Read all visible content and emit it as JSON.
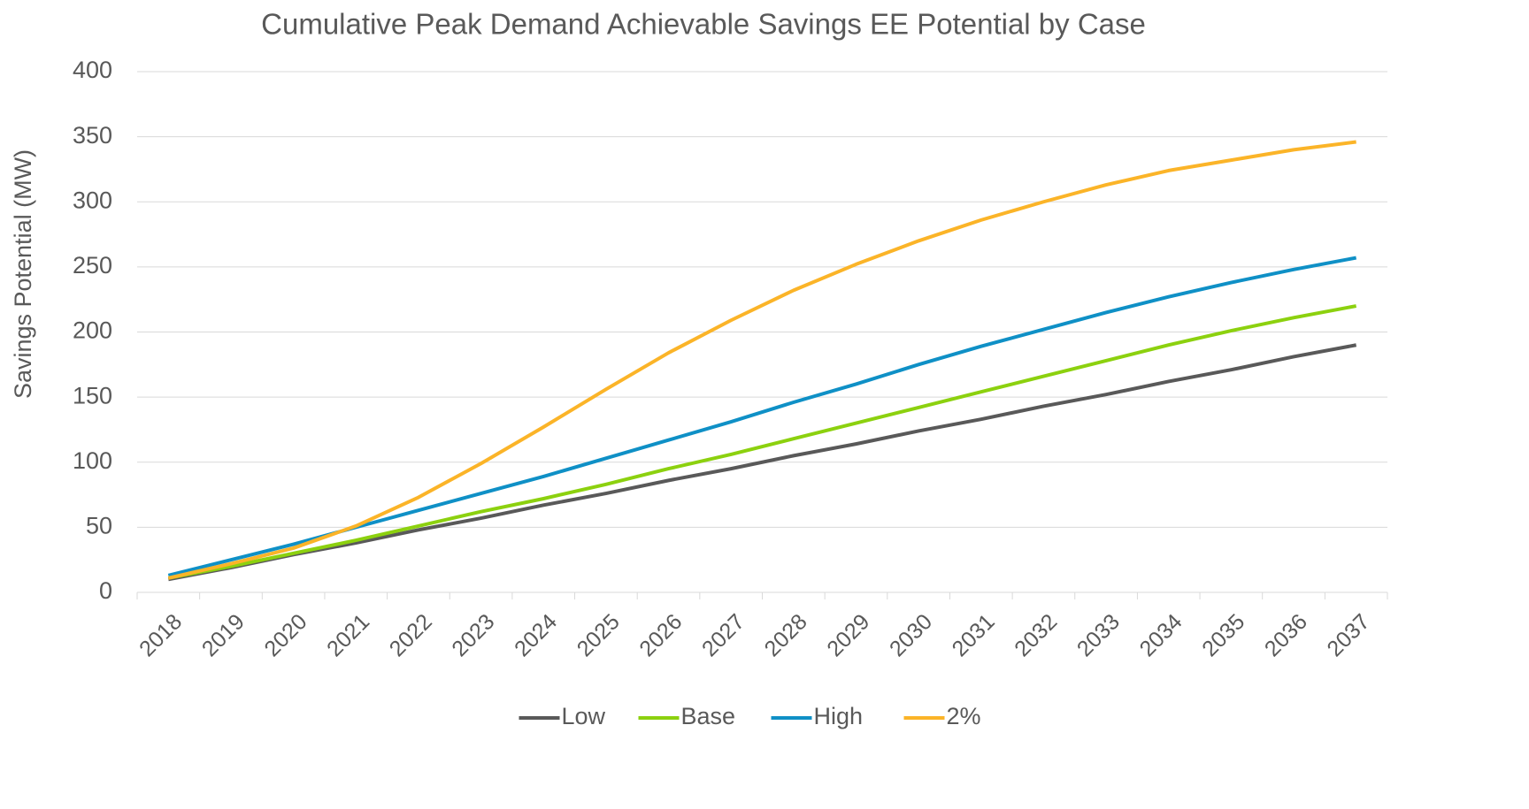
{
  "chart_data": {
    "type": "line",
    "title": "Cumulative Peak Demand Achievable Savings EE Potential by Case",
    "y_label": "Savings Potential (MW)",
    "categories": [
      "2018",
      "2019",
      "2020",
      "2021",
      "2022",
      "2023",
      "2024",
      "2025",
      "2026",
      "2027",
      "2028",
      "2029",
      "2030",
      "2031",
      "2032",
      "2033",
      "2034",
      "2035",
      "2036",
      "2037"
    ],
    "series": [
      {
        "name": "Low",
        "color": "#595959",
        "values": [
          10,
          19,
          29,
          38,
          48,
          57,
          67,
          76,
          86,
          95,
          105,
          114,
          124,
          133,
          143,
          152,
          162,
          171,
          181,
          190
        ]
      },
      {
        "name": "Base",
        "color": "#8cd10f",
        "values": [
          11,
          20,
          30,
          40,
          51,
          62,
          72,
          83,
          95,
          106,
          118,
          130,
          142,
          154,
          166,
          178,
          190,
          201,
          211,
          220
        ]
      },
      {
        "name": "High",
        "color": "#0f90c6",
        "values": [
          13,
          25,
          37,
          50,
          63,
          76,
          89,
          103,
          117,
          131,
          146,
          160,
          175,
          189,
          202,
          215,
          227,
          238,
          248,
          257
        ]
      },
      {
        "name": "2%",
        "color": "#fbb428",
        "values": [
          11,
          22,
          34,
          51,
          73,
          99,
          127,
          156,
          184,
          209,
          232,
          252,
          270,
          286,
          300,
          313,
          324,
          332,
          340,
          346
        ]
      }
    ],
    "ylim": [
      0,
      400
    ],
    "yticks": [
      0,
      50,
      100,
      150,
      200,
      250,
      300,
      350,
      400
    ],
    "grid": true,
    "legend": "bottom"
  }
}
